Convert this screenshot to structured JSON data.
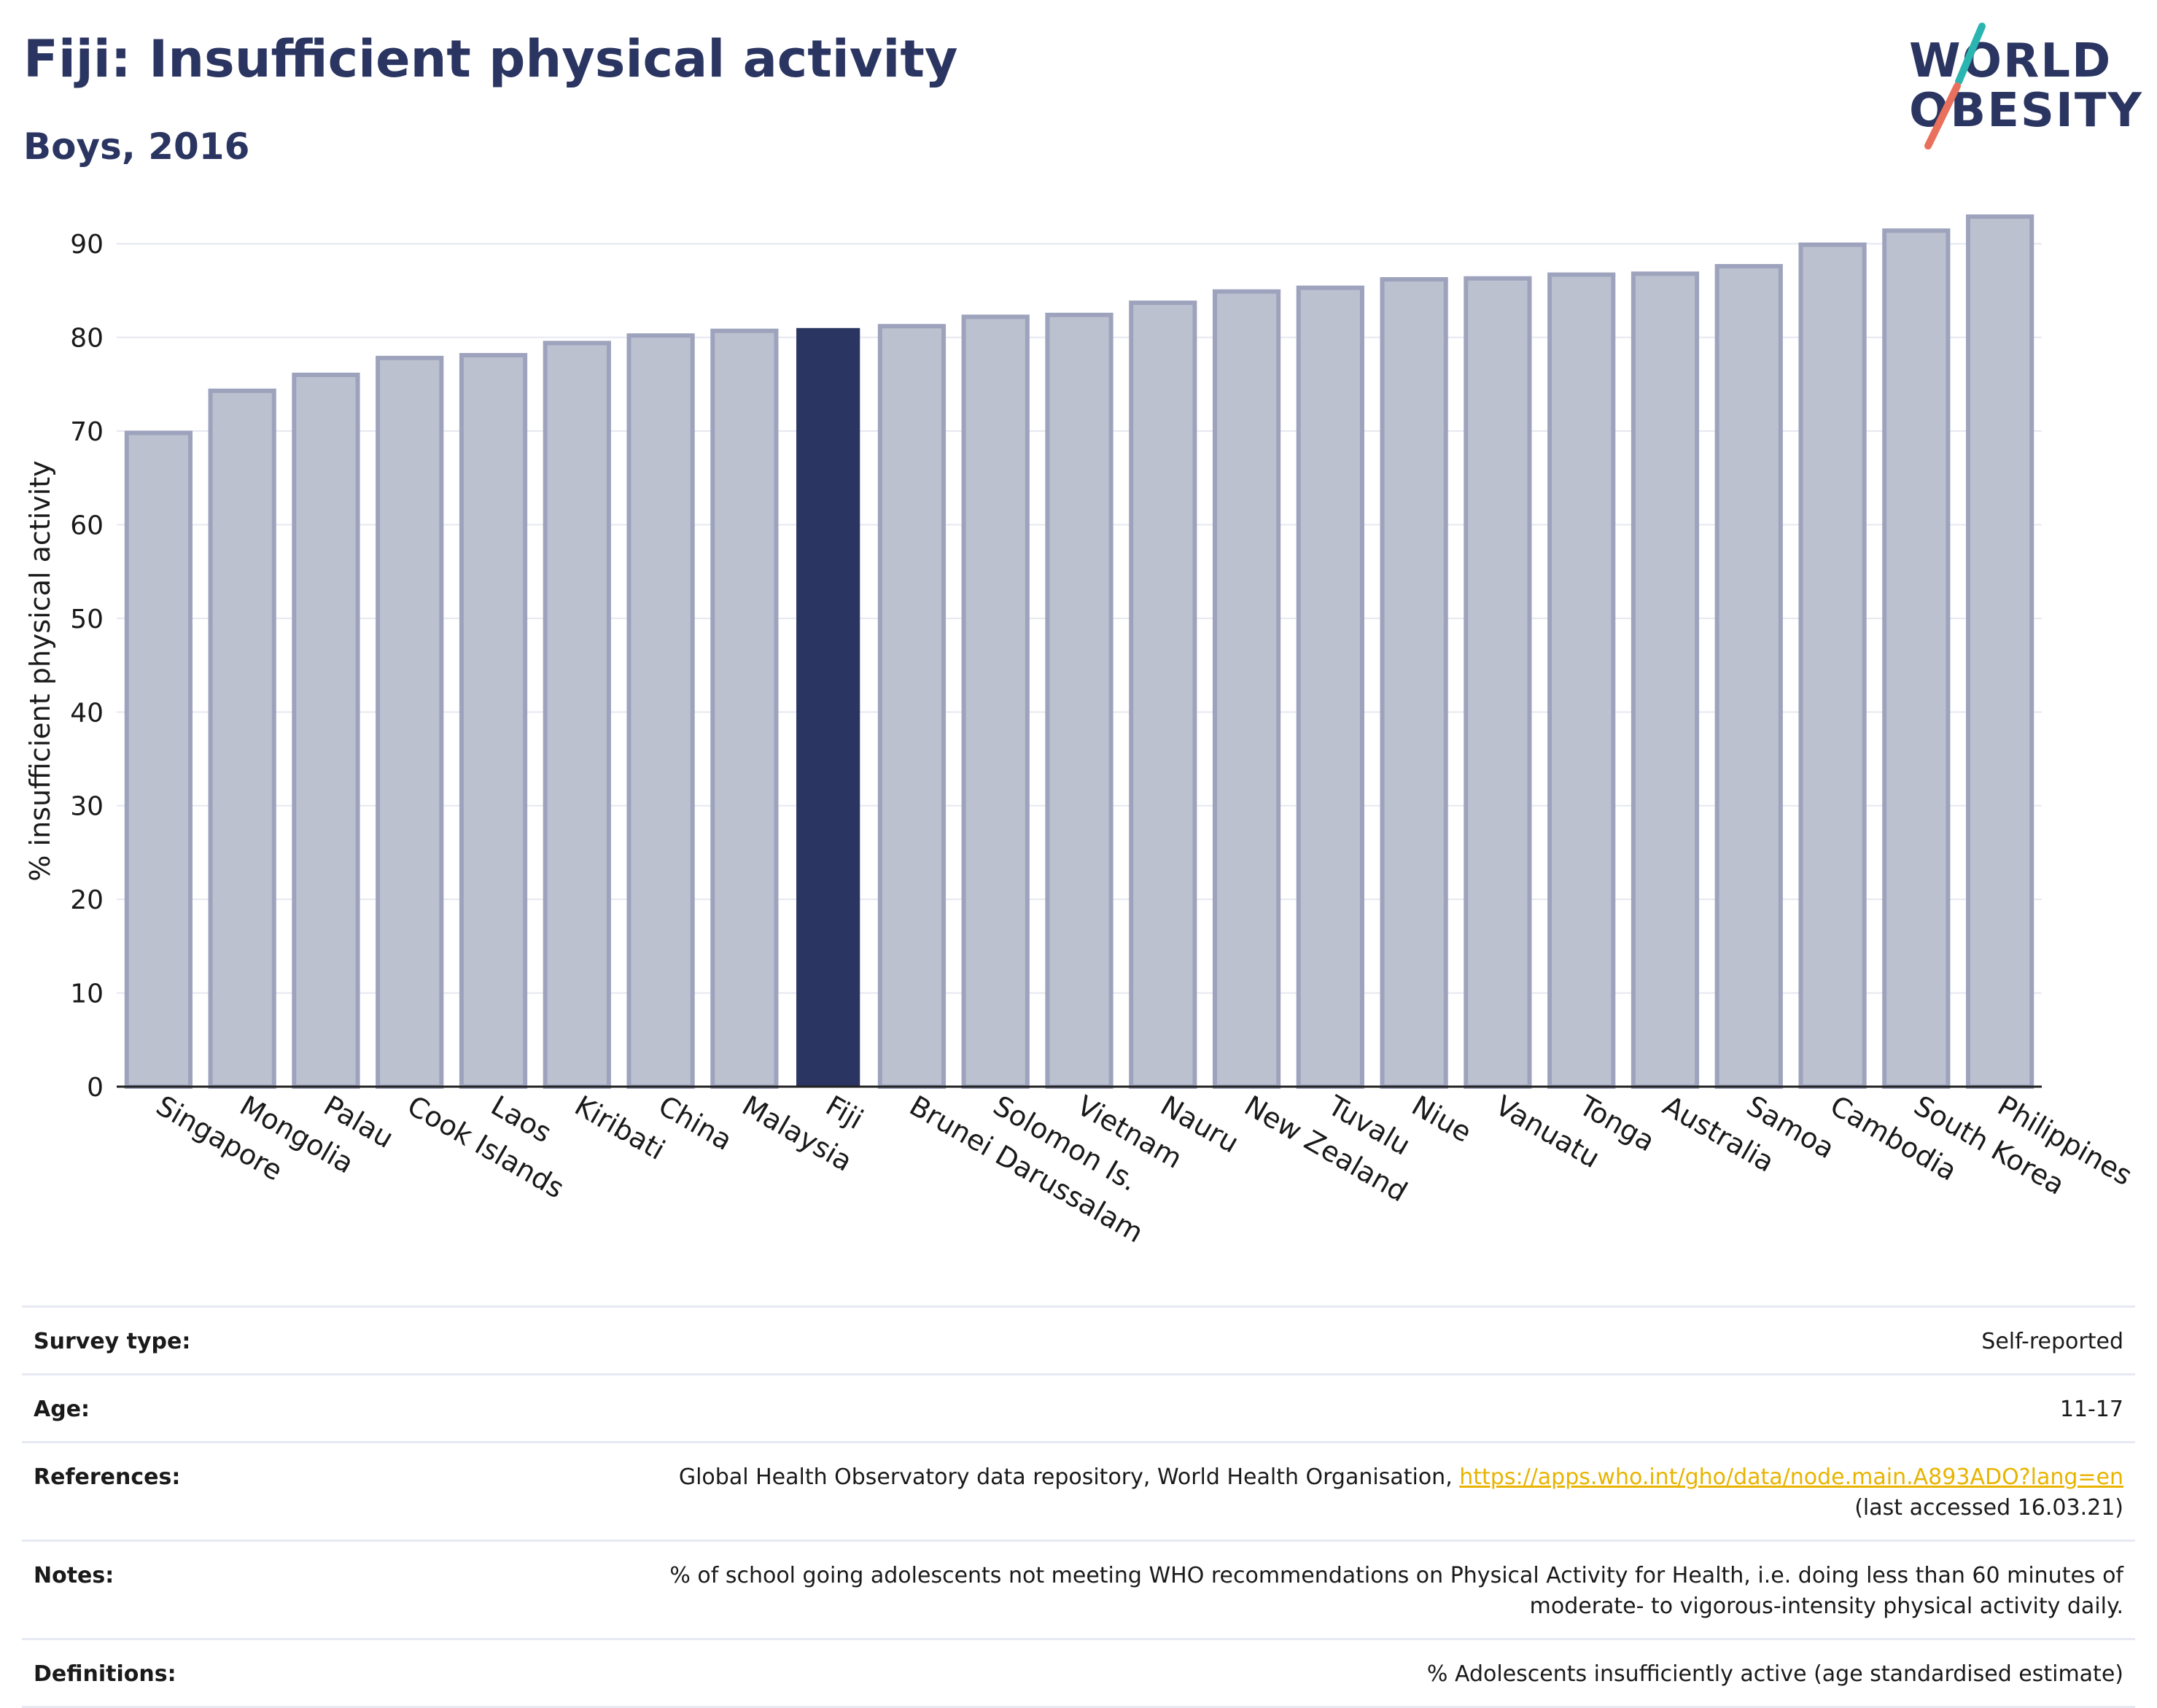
{
  "header": {
    "title": "Fiji: Insufficient physical activity",
    "subtitle": "Boys, 2016"
  },
  "logo": {
    "line1": "WORLD",
    "line2": "OBESITY",
    "colors": {
      "text": "#2b3561",
      "slash_top": "#2bb5b0",
      "slash_bottom": "#e8705c"
    }
  },
  "chart_data": {
    "type": "bar",
    "ylabel": "% insufficient physical activity",
    "xlabel": "",
    "ylim": [
      0,
      95
    ],
    "yticks": [
      0,
      10,
      20,
      30,
      40,
      50,
      60,
      70,
      80,
      90
    ],
    "grid": true,
    "highlight": "Fiji",
    "colors": {
      "bar": "#bcc1d0",
      "bar_border": "#9ea3bd",
      "highlight": "#2b3561"
    },
    "categories": [
      "Singapore",
      "Mongolia",
      "Palau",
      "Cook Islands",
      "Laos",
      "Kiribati",
      "China",
      "Malaysia",
      "Fiji",
      "Brunei Darussalam",
      "Solomon Is.",
      "Vietnam",
      "Nauru",
      "New Zealand",
      "Tuvalu",
      "Niue",
      "Vanuatu",
      "Tonga",
      "Australia",
      "Samoa",
      "Cambodia",
      "South Korea",
      "Philippines"
    ],
    "values": [
      69.8,
      74.3,
      76.0,
      77.8,
      78.1,
      79.4,
      80.2,
      80.7,
      81.0,
      81.2,
      82.2,
      82.4,
      83.7,
      84.9,
      85.3,
      86.2,
      86.3,
      86.7,
      86.8,
      87.6,
      89.9,
      91.4,
      92.9
    ]
  },
  "meta": {
    "survey_type": {
      "label": "Survey type:",
      "value": "Self-reported"
    },
    "age": {
      "label": "Age:",
      "value": "11-17"
    },
    "references": {
      "label": "References:",
      "text": "Global Health Observatory data repository, World Health Organisation, ",
      "link": "https://apps.who.int/gho/data/node.main.A893ADO?lang=en",
      "accessed": "(last accessed 16.03.21)"
    },
    "notes": {
      "label": "Notes:",
      "line1": "% of school going adolescents not meeting WHO recommendations on Physical Activity for Health, i.e. doing less than 60 minutes of",
      "line2": "moderate- to vigorous-intensity physical activity daily."
    },
    "definitions": {
      "label": "Definitions:",
      "value": "% Adolescents insufficiently active (age standardised estimate)"
    }
  }
}
